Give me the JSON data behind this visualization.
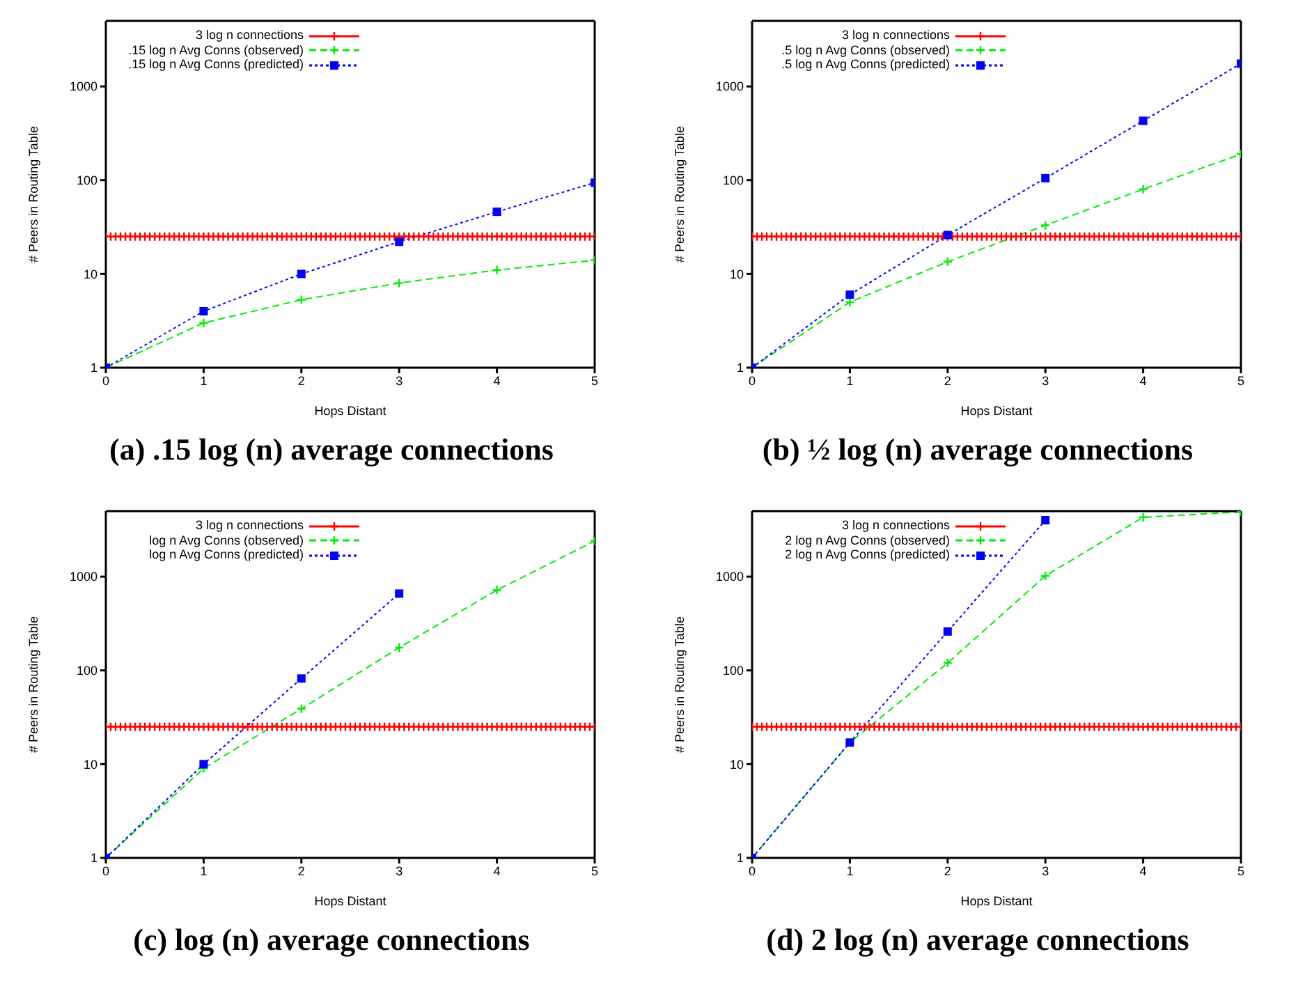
{
  "chart_data": [
    {
      "type": "line",
      "title": "(a) .15 log (n) average connections",
      "xlabel": "Hops Distant",
      "ylabel": "# Peers in Routing Table",
      "log": "y",
      "xlim": [
        0,
        5
      ],
      "ylim": [
        1,
        5000
      ],
      "xticks": [
        0,
        1,
        2,
        3,
        4,
        5
      ],
      "yticks": [
        1,
        10,
        100,
        1000
      ],
      "legend": "top",
      "x": [
        0,
        1,
        2,
        3,
        4,
        5
      ],
      "series": [
        {
          "name": "3 log n connections",
          "color": "#ff0000",
          "marker": "cross",
          "line_style": "solid",
          "x": [
            0,
            0.05,
            0.1,
            0.15,
            0.2,
            0.25,
            0.3,
            0.35,
            0.4,
            0.45,
            0.5,
            0.55,
            0.6,
            0.65,
            0.7,
            0.75,
            0.8,
            0.85,
            0.9,
            0.95,
            1,
            1.05,
            1.1,
            1.15,
            1.2,
            1.25,
            1.3,
            1.35,
            1.4,
            1.45,
            1.5,
            1.55,
            1.6,
            1.65,
            1.7,
            1.75,
            1.8,
            1.85,
            1.9,
            1.95,
            2,
            2.05,
            2.1,
            2.15,
            2.2,
            2.25,
            2.3,
            2.35,
            2.4,
            2.45,
            2.5,
            2.55,
            2.6,
            2.65,
            2.7,
            2.75,
            2.8,
            2.85,
            2.9,
            2.95,
            3,
            3.05,
            3.1,
            3.15,
            3.2,
            3.25,
            3.3,
            3.35,
            3.4,
            3.45,
            3.5,
            3.55,
            3.6,
            3.65,
            3.7,
            3.75,
            3.8,
            3.85,
            3.9,
            3.95,
            4,
            4.05,
            4.1,
            4.15,
            4.2,
            4.25,
            4.3,
            4.35,
            4.4,
            4.45,
            4.5,
            4.55,
            4.6,
            4.65,
            4.7,
            4.75,
            4.8,
            4.85,
            4.9,
            4.95,
            5
          ],
          "values": [
            25,
            25,
            25,
            25,
            25,
            25,
            25,
            25,
            25,
            25,
            25,
            25,
            25,
            25,
            25,
            25,
            25,
            25,
            25,
            25,
            25,
            25,
            25,
            25,
            25,
            25,
            25,
            25,
            25,
            25,
            25,
            25,
            25,
            25,
            25,
            25,
            25,
            25,
            25,
            25,
            25,
            25,
            25,
            25,
            25,
            25,
            25,
            25,
            25,
            25,
            25,
            25,
            25,
            25,
            25,
            25,
            25,
            25,
            25,
            25,
            25,
            25,
            25,
            25,
            25,
            25,
            25,
            25,
            25,
            25,
            25,
            25,
            25,
            25,
            25,
            25,
            25,
            25,
            25,
            25,
            25,
            25,
            25,
            25,
            25,
            25,
            25,
            25,
            25,
            25,
            25,
            25,
            25,
            25,
            25,
            25,
            25,
            25,
            25,
            25,
            25
          ]
        },
        {
          "name": ".15 log n Avg Conns (observed)",
          "color": "#00ee00",
          "marker": "cross",
          "line_style": "dashed",
          "values": [
            1,
            3,
            5.3,
            8,
            11,
            14
          ]
        },
        {
          "name": ".15 log n Avg Conns (predicted)",
          "color": "#0000ff",
          "marker": "square",
          "line_style": "dotted",
          "values": [
            1,
            4,
            10,
            22,
            46,
            94
          ]
        }
      ]
    },
    {
      "type": "line",
      "title": "(b) ½ log (n) average connections",
      "xlabel": "Hops Distant",
      "ylabel": "# Peers in Routing Table",
      "log": "y",
      "xlim": [
        0,
        5
      ],
      "ylim": [
        1,
        5000
      ],
      "xticks": [
        0,
        1,
        2,
        3,
        4,
        5
      ],
      "yticks": [
        1,
        10,
        100,
        1000
      ],
      "legend": "top",
      "x": [
        0,
        1,
        2,
        3,
        4,
        5
      ],
      "series": [
        {
          "name": "3 log n connections",
          "color": "#ff0000",
          "marker": "cross",
          "line_style": "solid",
          "x": [
            0,
            0.05,
            0.1,
            0.15,
            0.2,
            0.25,
            0.3,
            0.35,
            0.4,
            0.45,
            0.5,
            0.55,
            0.6,
            0.65,
            0.7,
            0.75,
            0.8,
            0.85,
            0.9,
            0.95,
            1,
            1.05,
            1.1,
            1.15,
            1.2,
            1.25,
            1.3,
            1.35,
            1.4,
            1.45,
            1.5,
            1.55,
            1.6,
            1.65,
            1.7,
            1.75,
            1.8,
            1.85,
            1.9,
            1.95,
            2,
            2.05,
            2.1,
            2.15,
            2.2,
            2.25,
            2.3,
            2.35,
            2.4,
            2.45,
            2.5,
            2.55,
            2.6,
            2.65,
            2.7,
            2.75,
            2.8,
            2.85,
            2.9,
            2.95,
            3,
            3.05,
            3.1,
            3.15,
            3.2,
            3.25,
            3.3,
            3.35,
            3.4,
            3.45,
            3.5,
            3.55,
            3.6,
            3.65,
            3.7,
            3.75,
            3.8,
            3.85,
            3.9,
            3.95,
            4,
            4.05,
            4.1,
            4.15,
            4.2,
            4.25,
            4.3,
            4.35,
            4.4,
            4.45,
            4.5,
            4.55,
            4.6,
            4.65,
            4.7,
            4.75,
            4.8,
            4.85,
            4.9,
            4.95,
            5
          ],
          "values": [
            25,
            25,
            25,
            25,
            25,
            25,
            25,
            25,
            25,
            25,
            25,
            25,
            25,
            25,
            25,
            25,
            25,
            25,
            25,
            25,
            25,
            25,
            25,
            25,
            25,
            25,
            25,
            25,
            25,
            25,
            25,
            25,
            25,
            25,
            25,
            25,
            25,
            25,
            25,
            25,
            25,
            25,
            25,
            25,
            25,
            25,
            25,
            25,
            25,
            25,
            25,
            25,
            25,
            25,
            25,
            25,
            25,
            25,
            25,
            25,
            25,
            25,
            25,
            25,
            25,
            25,
            25,
            25,
            25,
            25,
            25,
            25,
            25,
            25,
            25,
            25,
            25,
            25,
            25,
            25,
            25,
            25,
            25,
            25,
            25,
            25,
            25,
            25,
            25,
            25,
            25,
            25,
            25,
            25,
            25,
            25,
            25,
            25,
            25,
            25,
            25
          ]
        },
        {
          "name": ".5 log n Avg Conns (observed)",
          "color": "#00ee00",
          "marker": "cross",
          "line_style": "dashed",
          "values": [
            1,
            5,
            13.5,
            33,
            80,
            190
          ]
        },
        {
          "name": ".5 log n Avg Conns (predicted)",
          "color": "#0000ff",
          "marker": "square",
          "line_style": "dotted",
          "values": [
            1,
            6,
            26,
            105,
            430,
            1750
          ]
        }
      ]
    },
    {
      "type": "line",
      "title": "(c) log (n) average connections",
      "xlabel": "Hops Distant",
      "ylabel": "# Peers in Routing Table",
      "log": "y",
      "xlim": [
        0,
        5
      ],
      "ylim": [
        1,
        5000
      ],
      "xticks": [
        0,
        1,
        2,
        3,
        4,
        5
      ],
      "yticks": [
        1,
        10,
        100,
        1000
      ],
      "legend": "top",
      "x": [
        0,
        1,
        2,
        3,
        4,
        5
      ],
      "series": [
        {
          "name": "3 log n connections",
          "color": "#ff0000",
          "marker": "cross",
          "line_style": "solid",
          "x": [
            0,
            0.05,
            0.1,
            0.15,
            0.2,
            0.25,
            0.3,
            0.35,
            0.4,
            0.45,
            0.5,
            0.55,
            0.6,
            0.65,
            0.7,
            0.75,
            0.8,
            0.85,
            0.9,
            0.95,
            1,
            1.05,
            1.1,
            1.15,
            1.2,
            1.25,
            1.3,
            1.35,
            1.4,
            1.45,
            1.5,
            1.55,
            1.6,
            1.65,
            1.7,
            1.75,
            1.8,
            1.85,
            1.9,
            1.95,
            2,
            2.05,
            2.1,
            2.15,
            2.2,
            2.25,
            2.3,
            2.35,
            2.4,
            2.45,
            2.5,
            2.55,
            2.6,
            2.65,
            2.7,
            2.75,
            2.8,
            2.85,
            2.9,
            2.95,
            3,
            3.05,
            3.1,
            3.15,
            3.2,
            3.25,
            3.3,
            3.35,
            3.4,
            3.45,
            3.5,
            3.55,
            3.6,
            3.65,
            3.7,
            3.75,
            3.8,
            3.85,
            3.9,
            3.95,
            4,
            4.05,
            4.1,
            4.15,
            4.2,
            4.25,
            4.3,
            4.35,
            4.4,
            4.45,
            4.5,
            4.55,
            4.6,
            4.65,
            4.7,
            4.75,
            4.8,
            4.85,
            4.9,
            4.95,
            5
          ],
          "values": [
            25,
            25,
            25,
            25,
            25,
            25,
            25,
            25,
            25,
            25,
            25,
            25,
            25,
            25,
            25,
            25,
            25,
            25,
            25,
            25,
            25,
            25,
            25,
            25,
            25,
            25,
            25,
            25,
            25,
            25,
            25,
            25,
            25,
            25,
            25,
            25,
            25,
            25,
            25,
            25,
            25,
            25,
            25,
            25,
            25,
            25,
            25,
            25,
            25,
            25,
            25,
            25,
            25,
            25,
            25,
            25,
            25,
            25,
            25,
            25,
            25,
            25,
            25,
            25,
            25,
            25,
            25,
            25,
            25,
            25,
            25,
            25,
            25,
            25,
            25,
            25,
            25,
            25,
            25,
            25,
            25,
            25,
            25,
            25,
            25,
            25,
            25,
            25,
            25,
            25,
            25,
            25,
            25,
            25,
            25,
            25,
            25,
            25,
            25,
            25,
            25
          ]
        },
        {
          "name": "log n Avg Conns (observed)",
          "color": "#00ee00",
          "marker": "cross",
          "line_style": "dashed",
          "values": [
            1,
            9,
            39,
            175,
            720,
            2400
          ]
        },
        {
          "name": "log n Avg Conns (predicted)",
          "color": "#0000ff",
          "marker": "square",
          "line_style": "dotted",
          "values": [
            1,
            10,
            82,
            660,
            null,
            null
          ]
        }
      ]
    },
    {
      "type": "line",
      "title": "(d) 2 log (n) average connections",
      "xlabel": "Hops Distant",
      "ylabel": "# Peers in Routing Table",
      "log": "y",
      "xlim": [
        0,
        5
      ],
      "ylim": [
        1,
        5000
      ],
      "xticks": [
        0,
        1,
        2,
        3,
        4,
        5
      ],
      "yticks": [
        1,
        10,
        100,
        1000
      ],
      "legend": "top",
      "x": [
        0,
        1,
        2,
        3,
        4,
        5
      ],
      "series": [
        {
          "name": "3 log n connections",
          "color": "#ff0000",
          "marker": "cross",
          "line_style": "solid",
          "x": [
            0,
            0.05,
            0.1,
            0.15,
            0.2,
            0.25,
            0.3,
            0.35,
            0.4,
            0.45,
            0.5,
            0.55,
            0.6,
            0.65,
            0.7,
            0.75,
            0.8,
            0.85,
            0.9,
            0.95,
            1,
            1.05,
            1.1,
            1.15,
            1.2,
            1.25,
            1.3,
            1.35,
            1.4,
            1.45,
            1.5,
            1.55,
            1.6,
            1.65,
            1.7,
            1.75,
            1.8,
            1.85,
            1.9,
            1.95,
            2,
            2.05,
            2.1,
            2.15,
            2.2,
            2.25,
            2.3,
            2.35,
            2.4,
            2.45,
            2.5,
            2.55,
            2.6,
            2.65,
            2.7,
            2.75,
            2.8,
            2.85,
            2.9,
            2.95,
            3,
            3.05,
            3.1,
            3.15,
            3.2,
            3.25,
            3.3,
            3.35,
            3.4,
            3.45,
            3.5,
            3.55,
            3.6,
            3.65,
            3.7,
            3.75,
            3.8,
            3.85,
            3.9,
            3.95,
            4,
            4.05,
            4.1,
            4.15,
            4.2,
            4.25,
            4.3,
            4.35,
            4.4,
            4.45,
            4.5,
            4.55,
            4.6,
            4.65,
            4.7,
            4.75,
            4.8,
            4.85,
            4.9,
            4.95,
            5
          ],
          "values": [
            25,
            25,
            25,
            25,
            25,
            25,
            25,
            25,
            25,
            25,
            25,
            25,
            25,
            25,
            25,
            25,
            25,
            25,
            25,
            25,
            25,
            25,
            25,
            25,
            25,
            25,
            25,
            25,
            25,
            25,
            25,
            25,
            25,
            25,
            25,
            25,
            25,
            25,
            25,
            25,
            25,
            25,
            25,
            25,
            25,
            25,
            25,
            25,
            25,
            25,
            25,
            25,
            25,
            25,
            25,
            25,
            25,
            25,
            25,
            25,
            25,
            25,
            25,
            25,
            25,
            25,
            25,
            25,
            25,
            25,
            25,
            25,
            25,
            25,
            25,
            25,
            25,
            25,
            25,
            25,
            25,
            25,
            25,
            25,
            25,
            25,
            25,
            25,
            25,
            25,
            25,
            25,
            25,
            25,
            25,
            25,
            25,
            25,
            25,
            25,
            25
          ]
        },
        {
          "name": "2 log n Avg Conns (observed)",
          "color": "#00ee00",
          "marker": "cross",
          "line_style": "dashed",
          "values": [
            1,
            17,
            120,
            1020,
            4300,
            4900
          ]
        },
        {
          "name": "2 log n Avg Conns (predicted)",
          "color": "#0000ff",
          "marker": "square",
          "line_style": "dotted",
          "values": [
            1,
            17,
            260,
            4000,
            null,
            null
          ]
        }
      ]
    }
  ]
}
